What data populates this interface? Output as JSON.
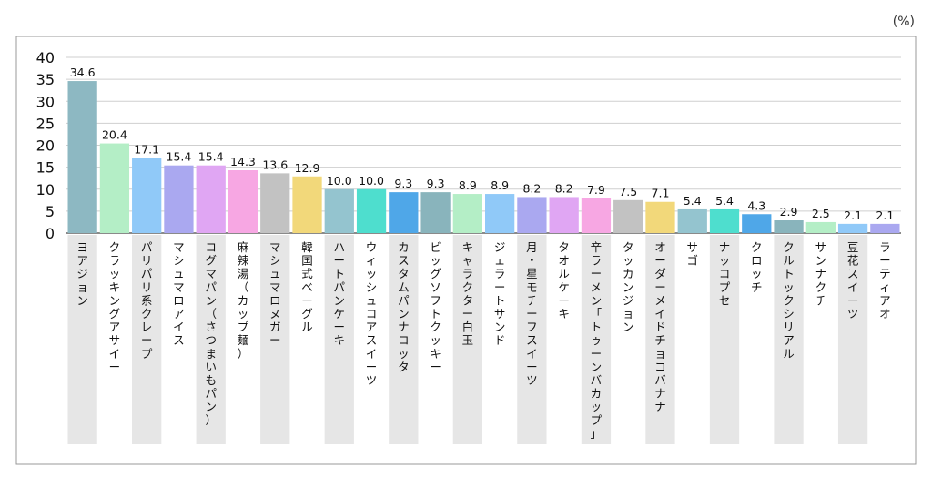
{
  "chart_data": {
    "type": "bar",
    "unit_label": "(%)",
    "categories": [
      "ヨアジョン",
      "クラッキングアサイー",
      "パリパリ系クレープ",
      "マシュマロアイス",
      "コグマパン（さつまいもパン）",
      "麻辣湯（カップ麺）",
      "マシュマロヌガー",
      "韓国式ベーグル",
      "ハートパンケーキ",
      "ウィッシュコアスイーツ",
      "カスタムパンナコッタ",
      "ビッグソフトクッキー",
      "キャラクター白玉",
      "ジェラートサンド",
      "月・星モチーフスイーツ",
      "タオルケーキ",
      "辛ラーメン「トゥーンバカップ」",
      "タッカンジョン",
      "オーダーメイドチョコバナナ",
      "サゴ",
      "ナッコプセ",
      "クロッチ",
      "クルトックシリアル",
      "サンナクチ",
      "豆花スイーツ",
      "ラーティアオ"
    ],
    "values": [
      34.6,
      20.4,
      17.1,
      15.4,
      15.4,
      14.3,
      13.6,
      12.9,
      10.0,
      10.0,
      9.3,
      9.3,
      8.9,
      8.9,
      8.2,
      8.2,
      7.9,
      7.5,
      7.1,
      5.4,
      5.4,
      4.3,
      2.9,
      2.5,
      2.1,
      2.1
    ],
    "value_labels": [
      "34.6",
      "20.4",
      "17.1",
      "15.4",
      "15.4",
      "14.3",
      "13.6",
      "12.9",
      "10.0",
      "10.0",
      "9.3",
      "9.3",
      "8.9",
      "8.9",
      "8.2",
      "8.2",
      "7.9",
      "7.5",
      "7.1",
      "5.4",
      "5.4",
      "4.3",
      "2.9",
      "2.5",
      "2.1",
      "2.1"
    ],
    "colors": [
      "#8db8c2",
      "#b4eec6",
      "#90c9f8",
      "#aaa8f0",
      "#e0a6f3",
      "#f7a7e3",
      "#c2c2c2",
      "#f2d87a",
      "#94c4cf",
      "#4edece",
      "#4fa7e8",
      "#89b4bc",
      "#b4eec6",
      "#90c9f8",
      "#aaa8f0",
      "#e0a6f3",
      "#f7a7e3",
      "#c2c2c2",
      "#f2d87a",
      "#94c4cf",
      "#4edece",
      "#4fa7e8",
      "#89b4bc",
      "#b4eec6",
      "#90c9f8",
      "#aaa8f0"
    ],
    "yticks": [
      0,
      5,
      10,
      15,
      20,
      25,
      30,
      35,
      40
    ],
    "ylim": [
      0,
      40
    ],
    "grid": true,
    "label_band_color": "#e6e6e6"
  }
}
